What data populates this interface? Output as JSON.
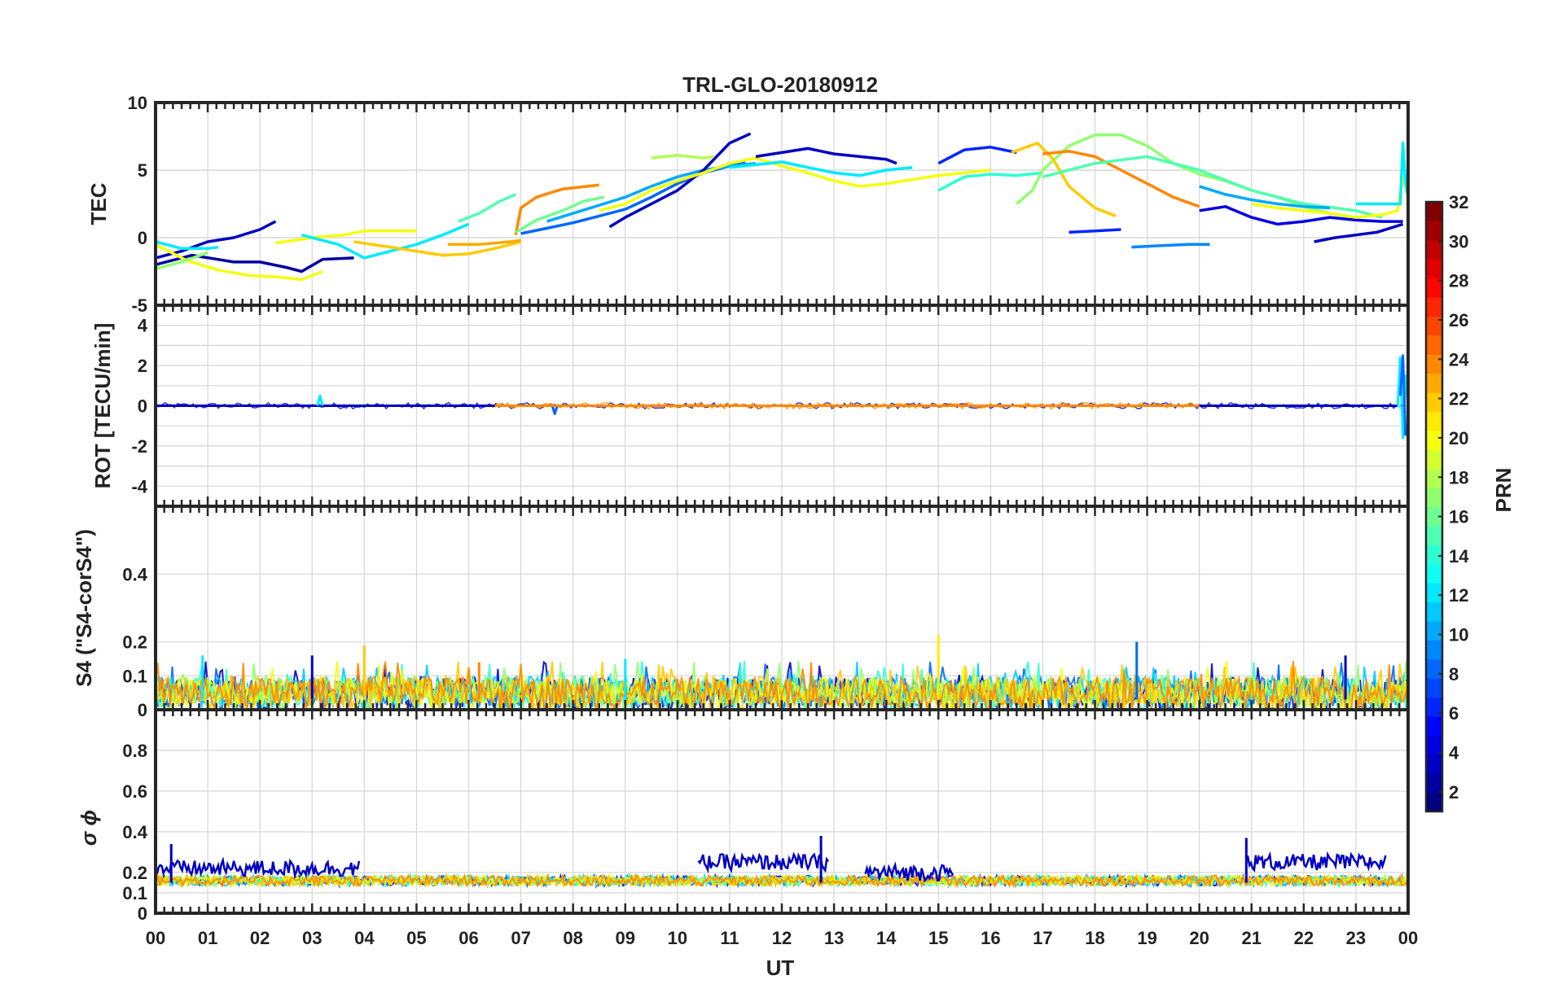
{
  "title": "TRL-GLO-20180912",
  "x_axis": {
    "label": "UT",
    "tick_labels": [
      "00",
      "01",
      "02",
      "03",
      "04",
      "05",
      "06",
      "07",
      "08",
      "09",
      "10",
      "11",
      "12",
      "13",
      "14",
      "15",
      "16",
      "17",
      "18",
      "19",
      "20",
      "21",
      "22",
      "23",
      "00"
    ],
    "range_hours": [
      0,
      24
    ]
  },
  "colorbar": {
    "label": "PRN",
    "range": [
      1,
      32
    ],
    "levels": 32,
    "colormap": "jet",
    "tick_labels": [
      "2",
      "4",
      "6",
      "8",
      "10",
      "12",
      "14",
      "16",
      "18",
      "20",
      "22",
      "24",
      "26",
      "28",
      "30",
      "32"
    ]
  },
  "chart_data": [
    {
      "type": "line",
      "panel": "TEC",
      "ylabel": "TEC",
      "ylim": [
        -5,
        10
      ],
      "ytick_labels": [
        "-5",
        "0",
        "5",
        "10"
      ],
      "grid": true,
      "series": [
        {
          "prn": 3,
          "x": [
            0,
            0.5,
            1,
            1.5,
            2,
            2.3
          ],
          "y": [
            -1.5,
            -1,
            -0.3,
            0,
            0.6,
            1.2
          ]
        },
        {
          "prn": 2,
          "x": [
            0,
            0.7,
            1.5,
            2,
            2.5,
            2.8,
            3.2,
            3.8
          ],
          "y": [
            -2,
            -1.3,
            -1.8,
            -1.8,
            -2.2,
            -2.5,
            -1.6,
            -1.5
          ]
        },
        {
          "prn": 20,
          "x": [
            0,
            0.6,
            1.2,
            1.8,
            2.3,
            2.8,
            3.2
          ],
          "y": [
            -0.5,
            -1.7,
            -2.4,
            -2.8,
            -2.9,
            -3.1,
            -2.5
          ]
        },
        {
          "prn": 12,
          "x": [
            0,
            0.5,
            1,
            1.2
          ],
          "y": [
            -0.3,
            -0.8,
            -0.8,
            -0.7
          ]
        },
        {
          "prn": 17,
          "x": [
            0,
            0.5,
            1
          ],
          "y": [
            -2.3,
            -1.8,
            -1.1
          ]
        },
        {
          "prn": 20,
          "x": [
            2.3,
            3,
            3.6,
            4,
            4.5,
            5
          ],
          "y": [
            -0.4,
            0,
            0.2,
            0.5,
            0.5,
            0.5
          ]
        },
        {
          "prn": 12,
          "x": [
            2.8,
            3.5,
            4,
            4.5,
            5,
            5.5,
            6
          ],
          "y": [
            0.2,
            -0.5,
            -1.5,
            -1,
            -0.5,
            0.2,
            1
          ]
        },
        {
          "prn": 15,
          "x": [
            5.8,
            6.2,
            6.6,
            6.9
          ],
          "y": [
            1.2,
            1.8,
            2.7,
            3.2
          ]
        },
        {
          "prn": 22,
          "x": [
            3.8,
            4.5,
            5,
            5.5,
            6,
            6.5,
            7
          ],
          "y": [
            -0.3,
            -0.7,
            -1,
            -1.3,
            -1.2,
            -0.8,
            -0.3
          ]
        },
        {
          "prn": 23,
          "x": [
            5.6,
            6.2,
            6.8,
            7
          ],
          "y": [
            -0.5,
            -0.5,
            -0.3,
            -0.2
          ]
        },
        {
          "prn": 24,
          "x": [
            6.9,
            7,
            7.3,
            7.8,
            8.5
          ],
          "y": [
            0.2,
            2.2,
            3,
            3.6,
            3.9
          ]
        },
        {
          "prn": 16,
          "x": [
            6.9,
            7.3,
            7.8,
            8.2,
            8.6
          ],
          "y": [
            0.4,
            1.3,
            2,
            2.7,
            3
          ]
        },
        {
          "prn": 8,
          "x": [
            7,
            7.5,
            8,
            8.5,
            9,
            9.5,
            10,
            10.5,
            11,
            11.3
          ],
          "y": [
            0.3,
            0.7,
            1.1,
            1.6,
            2.1,
            3,
            4,
            4.8,
            5.3,
            5.6
          ]
        },
        {
          "prn": 10,
          "x": [
            7.5,
            8,
            8.5,
            9,
            9.5,
            10,
            10.5,
            11,
            11.5
          ],
          "y": [
            1.2,
            1.8,
            2.4,
            3,
            3.8,
            4.5,
            5,
            5.3,
            5.5
          ]
        },
        {
          "prn": 3,
          "x": [
            8.7,
            9,
            9.5,
            10,
            10.5,
            11,
            11.4
          ],
          "y": [
            0.8,
            1.5,
            2.5,
            3.5,
            5,
            7,
            7.7
          ]
        },
        {
          "prn": 18,
          "x": [
            9.5,
            10,
            10.5,
            10.7
          ],
          "y": [
            5.9,
            6.1,
            5.9,
            6
          ]
        },
        {
          "prn": 20,
          "x": [
            8.5,
            9,
            9.5,
            10,
            10.5,
            11,
            11.5,
            12,
            12.5,
            13,
            13.5,
            14,
            15,
            16
          ],
          "y": [
            2,
            2.5,
            3.5,
            4.2,
            4.8,
            5.5,
            5.9,
            5.3,
            4.8,
            4.2,
            3.8,
            4,
            4.6,
            5
          ]
        },
        {
          "prn": 12,
          "x": [
            11,
            11.5,
            12,
            12.5,
            13,
            13.5,
            14,
            14.5
          ],
          "y": [
            5.2,
            5.4,
            5.6,
            5.2,
            4.8,
            4.6,
            5,
            5.2
          ]
        },
        {
          "prn": 3,
          "x": [
            11.5,
            12,
            12.5,
            13,
            13.5,
            14,
            14.2
          ],
          "y": [
            6,
            6.3,
            6.6,
            6.2,
            6,
            5.8,
            5.5
          ]
        },
        {
          "prn": 6,
          "x": [
            15,
            15.5,
            16,
            16.5
          ],
          "y": [
            5.5,
            6.5,
            6.7,
            6.3
          ]
        },
        {
          "prn": 14,
          "x": [
            15,
            15.5,
            16,
            16.5,
            17
          ],
          "y": [
            3.5,
            4.5,
            4.7,
            4.6,
            4.8
          ]
        },
        {
          "prn": 17,
          "x": [
            16.5,
            16.8,
            17,
            17.5,
            18,
            18.5,
            19,
            19.5,
            20,
            20.5,
            21,
            21.5,
            22,
            22.5,
            23
          ],
          "y": [
            2.5,
            3.5,
            5,
            6.8,
            7.6,
            7.6,
            6.8,
            5.5,
            4.7,
            4.2,
            3.5,
            3,
            2.3,
            1.8,
            1.5
          ]
        },
        {
          "prn": 22,
          "x": [
            16.4,
            16.9,
            17.2,
            17.5,
            18,
            18.4
          ],
          "y": [
            6.3,
            7,
            5.8,
            3.8,
            2.2,
            1.6
          ]
        },
        {
          "prn": 24,
          "x": [
            17,
            17.5,
            18,
            18.5,
            19,
            19.5,
            20
          ],
          "y": [
            6.2,
            6.4,
            6,
            5,
            4,
            3,
            2.3
          ]
        },
        {
          "prn": 15,
          "x": [
            17,
            18,
            19,
            20,
            21,
            22,
            23,
            23.5
          ],
          "y": [
            4.5,
            5.5,
            6,
            5,
            3.5,
            2.5,
            2,
            1.5
          ]
        },
        {
          "prn": 6,
          "x": [
            17.5,
            18,
            18.5
          ],
          "y": [
            0.4,
            0.5,
            0.6
          ]
        },
        {
          "prn": 9,
          "x": [
            18.7,
            19.2,
            19.8,
            20.2
          ],
          "y": [
            -0.7,
            -0.6,
            -0.5,
            -0.5
          ]
        },
        {
          "prn": 10,
          "x": [
            20,
            20.5,
            21,
            21.5,
            22,
            22.5
          ],
          "y": [
            3.8,
            3.2,
            2.8,
            2.5,
            2.3,
            2.2
          ]
        },
        {
          "prn": 4,
          "x": [
            20,
            20.5,
            21,
            21.5,
            22,
            22.5,
            23,
            23.5,
            23.9
          ],
          "y": [
            2,
            2.3,
            1.5,
            1,
            1.2,
            1.5,
            1.3,
            1.2,
            1.2
          ]
        },
        {
          "prn": 3,
          "x": [
            22.2,
            22.6,
            23,
            23.4,
            23.9
          ],
          "y": [
            -0.3,
            0,
            0.2,
            0.4,
            1
          ]
        },
        {
          "prn": 20,
          "x": [
            21,
            21.5,
            22,
            22.5,
            23,
            23.5,
            23.8,
            23.9,
            24
          ],
          "y": [
            2.5,
            2.2,
            2,
            1.8,
            1.5,
            1.7,
            2,
            4.5,
            3
          ]
        },
        {
          "prn": 12,
          "x": [
            23,
            23.5,
            23.85,
            23.9,
            23.95,
            24
          ],
          "y": [
            2.5,
            2.5,
            2.5,
            7,
            4,
            3
          ]
        }
      ]
    },
    {
      "type": "line",
      "panel": "ROT",
      "ylabel": "ROT [TECU/min]",
      "ylim": [
        -5,
        5
      ],
      "ytick_labels": [
        "-4",
        "-2",
        "0",
        "2",
        "4"
      ],
      "grid": true,
      "series": [
        {
          "prn": 3,
          "x": [
            0,
            4,
            8,
            12,
            16,
            20,
            23.8
          ],
          "y": [
            0,
            0,
            0,
            0,
            0,
            0,
            0
          ]
        },
        {
          "prn": 12,
          "x": [
            3.1,
            3.15,
            3.2
          ],
          "y": [
            0,
            0.5,
            0
          ]
        },
        {
          "prn": 8,
          "x": [
            7.6,
            7.65,
            7.7
          ],
          "y": [
            0,
            -0.4,
            0
          ]
        },
        {
          "prn": 24,
          "x": [
            6.5,
            8.5,
            16.5,
            20
          ],
          "y": [
            0,
            0,
            0,
            0
          ]
        },
        {
          "prn": 12,
          "x": [
            23.8,
            23.85,
            23.9,
            23.95,
            24
          ],
          "y": [
            0,
            2.4,
            -1.6,
            1.5,
            0
          ]
        },
        {
          "prn": 8,
          "x": [
            23.85,
            23.9,
            23.95
          ],
          "y": [
            0.5,
            2.5,
            -1.5
          ]
        }
      ]
    },
    {
      "type": "line",
      "panel": "S4",
      "ylabel": "S4 (\"S4-corS4\")",
      "ylim": [
        0,
        0.6
      ],
      "ytick_labels": [
        "0",
        "0.1",
        "0.2",
        "0.4"
      ],
      "grid": true,
      "series_description_values": {
        "baseline": 0.03,
        "typical_peak": 0.12,
        "peaks": [
          {
            "x": 0.9,
            "y": 0.16,
            "prn": 12
          },
          {
            "x": 3.0,
            "y": 0.16,
            "prn": 3
          },
          {
            "x": 4.0,
            "y": 0.19,
            "prn": 22
          },
          {
            "x": 6.2,
            "y": 0.14,
            "prn": 24
          },
          {
            "x": 9.0,
            "y": 0.15,
            "prn": 12
          },
          {
            "x": 15.0,
            "y": 0.22,
            "prn": 21
          },
          {
            "x": 18.8,
            "y": 0.2,
            "prn": 8
          },
          {
            "x": 22.8,
            "y": 0.16,
            "prn": 3
          }
        ]
      }
    },
    {
      "type": "line",
      "panel": "sigma_phi",
      "ylabel": "σ ϕ",
      "ylim": [
        0,
        1
      ],
      "ytick_labels": [
        "0",
        "0.1",
        "0.2",
        "0.4",
        "0.6",
        "0.8"
      ],
      "grid": true,
      "series_description_values": {
        "baseline": 0.15,
        "prn3_segments": [
          {
            "x": [
              0,
              3.9
            ],
            "level": 0.22
          },
          {
            "x": [
              10.4,
              12.9
            ],
            "level": 0.25
          },
          {
            "x": [
              13.6,
              15.3
            ],
            "level": 0.2
          },
          {
            "x": [
              20.9,
              23.6
            ],
            "level": 0.25
          }
        ],
        "peaks": [
          {
            "x": 0.3,
            "y": 0.34
          },
          {
            "x": 12.75,
            "y": 0.38
          },
          {
            "x": 20.9,
            "y": 0.37
          }
        ]
      }
    }
  ]
}
